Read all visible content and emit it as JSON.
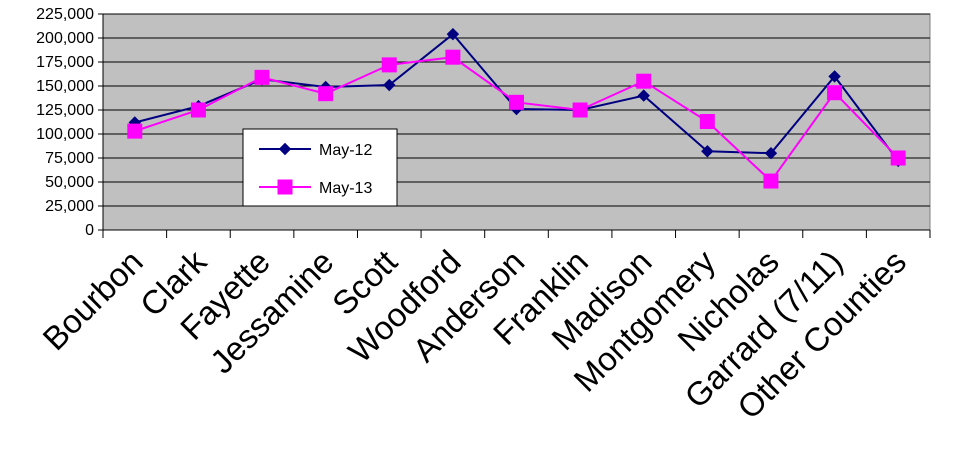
{
  "chart_data": {
    "type": "line",
    "title": "",
    "xlabel": "",
    "ylabel": "",
    "categories": [
      "Bourbon",
      "Clark",
      "Fayette",
      "Jessamine",
      "Scott",
      "Woodford",
      "Anderson",
      "Franklin",
      "Madison",
      "Montgomery",
      "Nicholas",
      "Garrard (7/11)",
      "Other Counties"
    ],
    "ylim": [
      0,
      225000
    ],
    "yticks": [
      0,
      25000,
      50000,
      75000,
      100000,
      125000,
      150000,
      175000,
      200000,
      225000
    ],
    "ytick_labels": [
      "0",
      "25,000",
      "50,000",
      "75,000",
      "100,000",
      "125,000",
      "150,000",
      "175,000",
      "200,000",
      "225,000"
    ],
    "grid": true,
    "plot_background": "#c0c0c0",
    "legend_position": "center-left",
    "series": [
      {
        "name": "May-12",
        "color": "#000080",
        "marker": "diamond",
        "values": [
          112000,
          129000,
          157000,
          149000,
          151000,
          204000,
          126000,
          125000,
          140000,
          82000,
          80000,
          160000,
          72000
        ]
      },
      {
        "name": "May-13",
        "color": "#ff00ff",
        "marker": "square",
        "values": [
          103000,
          125000,
          159000,
          142000,
          172000,
          180000,
          133000,
          125000,
          155000,
          113000,
          51000,
          143000,
          75000
        ]
      }
    ]
  }
}
